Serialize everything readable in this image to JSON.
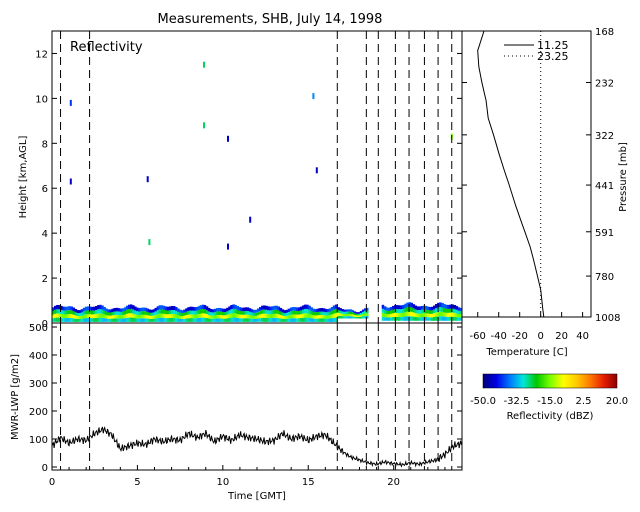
{
  "title": "Measurements, SHB, July 14, 1998",
  "panel_label": "Reflectivity",
  "chart_data": [
    {
      "type": "heatmap",
      "name_in_plot": "Reflectivity",
      "xlabel": "",
      "ylabel": "Height [km,AGL]",
      "xlim": [
        0,
        24
      ],
      "ylim": [
        0,
        13
      ],
      "y_ticks": [
        0,
        2,
        4,
        6,
        8,
        10,
        12
      ],
      "vertical_dashed_lines_gmt": [
        0.5,
        2.2,
        16.7,
        18.4,
        19.1,
        20.1,
        20.9,
        21.8,
        22.6,
        23.4
      ],
      "cloud_layer": [
        {
          "x0": 0.0,
          "x1": 16.7,
          "base_km": 0.05,
          "top_km": 0.7
        },
        {
          "x0": 16.7,
          "x1": 18.5,
          "base_km": 0.2,
          "top_km": 0.6
        },
        {
          "x0": 19.3,
          "x1": 24.0,
          "base_km": 0.1,
          "top_km": 0.8
        }
      ],
      "specks": [
        {
          "x": 1.1,
          "y": 9.8,
          "dbz": -40
        },
        {
          "x": 1.1,
          "y": 6.3,
          "dbz": -45
        },
        {
          "x": 5.7,
          "y": 3.6,
          "dbz": -25
        },
        {
          "x": 5.6,
          "y": 6.4,
          "dbz": -45
        },
        {
          "x": 8.9,
          "y": 11.5,
          "dbz": -25
        },
        {
          "x": 8.9,
          "y": 8.8,
          "dbz": -25
        },
        {
          "x": 10.3,
          "y": 8.2,
          "dbz": -45
        },
        {
          "x": 10.3,
          "y": 3.4,
          "dbz": -45
        },
        {
          "x": 11.6,
          "y": 4.6,
          "dbz": -45
        },
        {
          "x": 15.3,
          "y": 10.1,
          "dbz": -35
        },
        {
          "x": 15.5,
          "y": 6.8,
          "dbz": -45
        },
        {
          "x": 23.4,
          "y": 8.3,
          "dbz": -15
        }
      ]
    },
    {
      "type": "line",
      "xlabel": "Time [GMT]",
      "ylabel": "MWR-LWP [g/m2]",
      "xlim": [
        0,
        24
      ],
      "ylim": [
        0,
        500
      ],
      "x_ticks": [
        0,
        5,
        10,
        15,
        20
      ],
      "y_ticks": [
        0,
        100,
        200,
        300,
        400,
        500
      ],
      "vertical_dashed_lines_gmt": [
        0.5,
        2.2,
        16.7,
        18.4,
        19.1,
        20.1,
        20.9,
        21.8,
        22.6,
        23.4
      ],
      "x": [
        0,
        0.5,
        1,
        1.5,
        2,
        2.5,
        3,
        3.5,
        4,
        4.5,
        5,
        5.5,
        6,
        6.5,
        7,
        7.5,
        8,
        8.5,
        9,
        9.5,
        10,
        10.5,
        11,
        11.5,
        12,
        12.5,
        13,
        13.5,
        14,
        14.5,
        15,
        15.5,
        16,
        16.5,
        17,
        17.5,
        18,
        18.5,
        19,
        19.5,
        20,
        20.5,
        21,
        21.5,
        22,
        22.5,
        23,
        23.5,
        24
      ],
      "y": [
        75,
        105,
        85,
        100,
        95,
        120,
        135,
        115,
        65,
        75,
        85,
        80,
        100,
        90,
        100,
        95,
        120,
        105,
        120,
        90,
        110,
        95,
        115,
        105,
        100,
        90,
        95,
        120,
        100,
        110,
        95,
        110,
        115,
        85,
        55,
        35,
        25,
        15,
        10,
        18,
        12,
        8,
        15,
        10,
        18,
        25,
        45,
        75,
        85
      ]
    },
    {
      "type": "line",
      "xlabel": "Temperature [C]",
      "ylabel": "Pressure [mb]",
      "pressure_ticks": [
        168,
        232,
        322,
        441,
        591,
        780,
        1008
      ],
      "temp_ticks": [
        -60,
        -40,
        -20,
        0,
        20,
        40
      ],
      "xlim": [
        -75,
        48
      ],
      "legend_position": "top",
      "series": [
        {
          "name": "11.25",
          "pressure": [
            168,
            190,
            210,
            232,
            260,
            290,
            322,
            360,
            400,
            441,
            500,
            560,
            591,
            650,
            700,
            780,
            850,
            900,
            960,
            1008
          ],
          "temp": [
            -54,
            -60,
            -59,
            -56,
            -52,
            -50,
            -45,
            -40,
            -35,
            -30,
            -24,
            -18,
            -15,
            -10,
            -7,
            -3,
            0,
            1,
            2,
            3
          ]
        },
        {
          "name": "23.25",
          "pressure": [
            168,
            1008
          ],
          "temp": [
            0,
            0
          ]
        }
      ]
    },
    {
      "type": "colorbar",
      "label": "Reflectivity (dBZ)",
      "range": [
        -50,
        20
      ],
      "tick_labels": [
        "-50.0",
        "-32.5",
        "-15.0",
        "2.5",
        "20.0"
      ],
      "stops": [
        "#000078",
        "#0000e6",
        "#0078ff",
        "#00e6dc",
        "#00c800",
        "#78ff00",
        "#ffff00",
        "#ffc800",
        "#ff7800",
        "#e61e00",
        "#8c0000"
      ]
    }
  ]
}
